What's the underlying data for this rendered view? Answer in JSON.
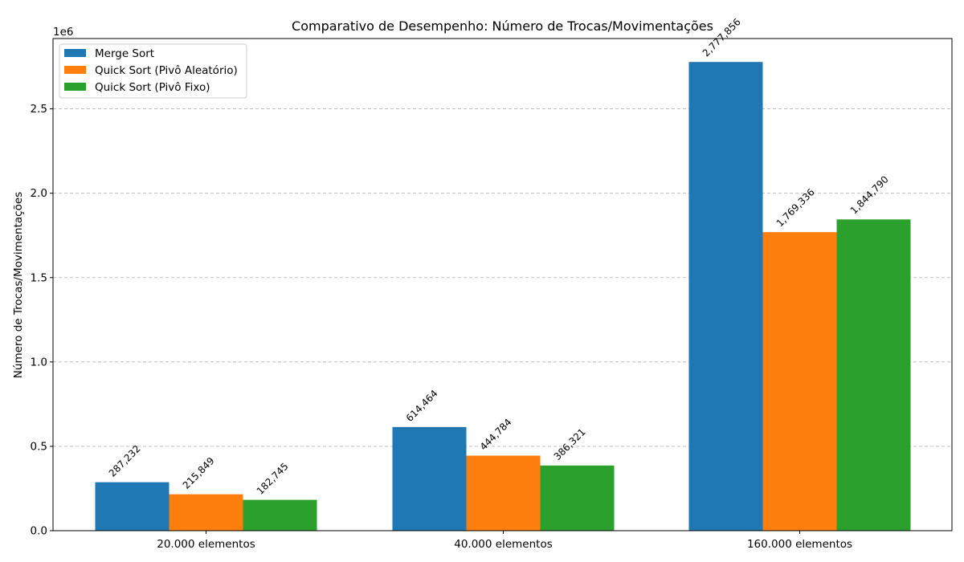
{
  "chart_data": {
    "type": "bar",
    "title": "Comparativo de Desempenho: Número de Trocas/Movimentações",
    "xlabel": "",
    "ylabel": "Número de Trocas/Movimentações",
    "y_scale_label": "1e6",
    "categories": [
      "20.000 elementos",
      "40.000 elementos",
      "160.000 elementos"
    ],
    "series": [
      {
        "name": "Merge Sort",
        "color": "#1f77b4",
        "values": [
          287232,
          614464,
          2777856
        ],
        "labels": [
          "287,232",
          "614,464",
          "2,777,856"
        ]
      },
      {
        "name": "Quick Sort (Pivô Aleatório)",
        "color": "#ff7f0e",
        "values": [
          215849,
          444784,
          1769336
        ],
        "labels": [
          "215,849",
          "444,784",
          "1,769,336"
        ]
      },
      {
        "name": "Quick Sort (Pivô Fixo)",
        "color": "#2ca02c",
        "values": [
          182745,
          386321,
          1844790
        ],
        "labels": [
          "182,745",
          "386,321",
          "1,844,790"
        ]
      }
    ],
    "y_ticks": [
      {
        "value": 0,
        "label": "0.0"
      },
      {
        "value": 500000,
        "label": "0.5"
      },
      {
        "value": 1000000,
        "label": "1.0"
      },
      {
        "value": 1500000,
        "label": "1.5"
      },
      {
        "value": 2000000,
        "label": "2.0"
      },
      {
        "value": 2500000,
        "label": "2.5"
      }
    ],
    "ylim": [
      0,
      2916749
    ],
    "grid": "horizontal dashed",
    "legend_position": "upper-left"
  }
}
